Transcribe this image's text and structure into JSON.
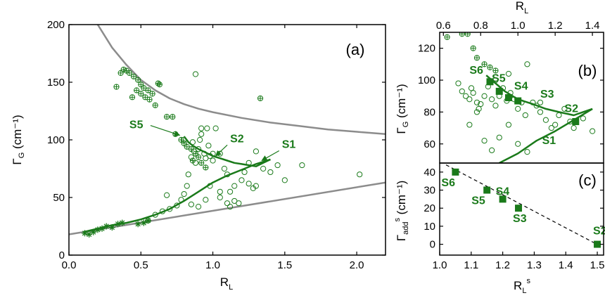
{
  "colors": {
    "green": "#1a7a1a",
    "gray": "#8c8c8c",
    "black": "#000000"
  },
  "chart_data": [
    {
      "type": "scatter",
      "panel_label": "(a)",
      "xlabel": "R",
      "xlabel_sub": "L",
      "ylabel": "Γ",
      "ylabel_sub": "G",
      "ylabel_unit": "(cm⁻¹)",
      "xlim": [
        0,
        2.2
      ],
      "ylim": [
        0,
        200
      ],
      "xticks": [
        "0.0",
        "0.5",
        "1.0",
        "1.5",
        "2.0"
      ],
      "xtick_values": [
        0,
        0.5,
        1.0,
        1.5,
        2.0
      ],
      "yticks": [
        "0",
        "50",
        "100",
        "150",
        "200"
      ],
      "ytick_values": [
        0,
        50,
        100,
        150,
        200
      ],
      "upper_bound": {
        "x": [
          0.2,
          0.3,
          0.4,
          0.5,
          0.6,
          0.7,
          0.8,
          0.9,
          1.0,
          1.2,
          1.4,
          1.6,
          1.8,
          2.0,
          2.2
        ],
        "y": [
          200,
          180,
          165,
          152,
          143,
          136,
          131,
          127,
          124,
          119,
          115,
          112,
          109,
          107,
          105
        ]
      },
      "lower_bound": {
        "x": [
          0.0,
          2.2
        ],
        "y": [
          18,
          63
        ]
      },
      "crosshair_points": {
        "x": [
          0.33,
          0.36,
          0.38,
          0.4,
          0.42,
          0.45,
          0.48,
          0.5,
          0.52,
          0.55,
          0.58,
          0.62,
          0.63,
          0.44,
          0.47,
          0.5,
          0.53,
          0.56,
          0.6,
          0.68,
          0.72,
          0.74,
          0.78,
          0.8,
          0.82,
          0.85,
          0.88,
          0.9,
          0.92,
          0.86,
          0.95,
          1.33
        ],
        "y": [
          146,
          158,
          161,
          160,
          158,
          155,
          152,
          148,
          145,
          143,
          140,
          149,
          148,
          137,
          143,
          140,
          137,
          135,
          130,
          120,
          120,
          105,
          100,
          97,
          94,
          92,
          88,
          85,
          80,
          82,
          76,
          136
        ]
      },
      "circle_points": {
        "x": [
          0.55,
          0.6,
          0.65,
          0.7,
          0.68,
          0.75,
          0.78,
          0.8,
          0.82,
          0.83,
          0.85,
          0.86,
          0.87,
          0.88,
          0.9,
          0.91,
          0.92,
          0.94,
          0.95,
          0.97,
          0.98,
          1.0,
          1.02,
          1.05,
          1.08,
          1.1,
          1.12,
          1.15,
          1.18,
          1.2,
          1.22,
          1.25,
          1.28,
          1.3,
          1.35,
          1.4,
          1.45,
          1.5,
          1.62,
          2.02,
          0.88,
          0.92,
          0.96,
          1.0,
          1.05,
          1.1,
          1.12,
          1.15,
          1.25,
          1.3,
          0.85,
          0.9,
          0.95,
          1.05,
          0.8,
          0.98
        ],
        "y": [
          30,
          35,
          38,
          40,
          52,
          43,
          48,
          53,
          60,
          70,
          85,
          98,
          90,
          80,
          92,
          100,
          105,
          88,
          84,
          95,
          86,
          82,
          110,
          88,
          75,
          70,
          55,
          60,
          45,
          65,
          72,
          80,
          58,
          90,
          75,
          72,
          78,
          65,
          78,
          70,
          157,
          110,
          110,
          88,
          50,
          45,
          42,
          47,
          62,
          60,
          44,
          42,
          48,
          55,
          100,
          60
        ]
      },
      "star_points": {
        "x": [
          0.11,
          0.14,
          0.17,
          0.2,
          0.23,
          0.26,
          0.3,
          0.34,
          0.37,
          0.48,
          0.52,
          0.55
        ],
        "y": [
          19,
          18,
          20,
          22,
          23,
          25,
          24,
          27,
          28,
          27,
          28,
          30
        ]
      },
      "lower_curve": {
        "x": [
          0.1,
          0.2,
          0.3,
          0.4,
          0.5,
          0.6,
          0.7,
          0.8,
          0.9,
          1.0,
          1.1,
          1.2,
          1.3,
          1.4
        ],
        "y": [
          20,
          23,
          26,
          28,
          31,
          35,
          40,
          47,
          55,
          63,
          69,
          74,
          79,
          83
        ]
      },
      "upper_curve": {
        "x": [
          0.8,
          0.83,
          0.86,
          0.9,
          0.95,
          1.0,
          1.05,
          1.1,
          1.15,
          1.2,
          1.25,
          1.3,
          1.35,
          1.4
        ],
        "y": [
          103,
          98,
          95,
          92,
          89,
          86,
          84,
          82,
          80,
          79,
          78,
          77,
          80,
          83
        ]
      },
      "series_labels": [
        {
          "text": "S5",
          "x": 0.42,
          "y": 110,
          "ax": 0.77,
          "ay": 104
        },
        {
          "text": "S2",
          "x": 1.12,
          "y": 98,
          "ax": 1.02,
          "ay": 86
        },
        {
          "text": "S1",
          "x": 1.48,
          "y": 93,
          "ax": 1.34,
          "ay": 82
        }
      ]
    },
    {
      "type": "scatter",
      "panel_label": "(b)",
      "xlabel": "R",
      "xlabel_sub": "L",
      "ylabel": "Γ",
      "ylabel_sub": "G",
      "ylabel_unit": "(cm⁻¹)",
      "xlim": [
        0.58,
        1.46
      ],
      "ylim": [
        48,
        130
      ],
      "xticks": [
        "0.6",
        "0.8",
        "1.0",
        "1.2",
        "1.4"
      ],
      "xtick_values": [
        0.6,
        0.8,
        1.0,
        1.2,
        1.4
      ],
      "yticks": [
        "60",
        "80",
        "100",
        "120"
      ],
      "ytick_values": [
        60,
        80,
        100,
        120
      ],
      "crosshair_points": {
        "x": [
          0.62,
          0.7,
          0.73,
          0.76,
          0.78,
          0.82,
          0.85,
          0.88
        ],
        "y": [
          127,
          129,
          129,
          120,
          114,
          110,
          108,
          106
        ]
      },
      "circle_points": {
        "x": [
          0.68,
          0.7,
          0.72,
          0.74,
          0.75,
          0.76,
          0.78,
          0.79,
          0.8,
          0.82,
          0.84,
          0.86,
          0.88,
          0.9,
          0.92,
          0.94,
          0.95,
          0.96,
          0.98,
          1.0,
          1.02,
          1.04,
          1.05,
          1.08,
          1.1,
          1.12,
          1.15,
          1.18,
          1.2,
          1.22,
          1.25,
          1.28,
          1.3,
          1.35,
          1.4,
          0.74,
          0.78,
          0.82,
          0.86,
          0.9,
          0.95,
          1.0,
          1.05,
          0.88,
          1.12
        ],
        "y": [
          98,
          93,
          90,
          88,
          95,
          92,
          86,
          82,
          85,
          90,
          96,
          88,
          84,
          90,
          95,
          87,
          104,
          92,
          88,
          82,
          86,
          78,
          110,
          86,
          84,
          80,
          75,
          70,
          72,
          78,
          82,
          74,
          70,
          76,
          68,
          72,
          80,
          62,
          56,
          64,
          72,
          60,
          55,
          100,
          86
        ]
      },
      "lower_curve": {
        "x": [
          0.9,
          1.0,
          1.1,
          1.2,
          1.3,
          1.4
        ],
        "y": [
          48,
          54,
          62,
          68,
          75,
          82
        ]
      },
      "upper_curve": {
        "x": [
          0.83,
          0.88,
          0.93,
          1.0,
          1.08,
          1.15,
          1.22,
          1.3,
          1.35,
          1.4
        ],
        "y": [
          103,
          98,
          93,
          88,
          85,
          82,
          80,
          78,
          80,
          82
        ]
      },
      "square_points": {
        "x": [
          0.85,
          0.9,
          0.95,
          1.0,
          1.31
        ],
        "y": [
          99,
          93,
          89,
          87,
          74
        ]
      },
      "series_labels": [
        {
          "text": "S6",
          "x": 0.74,
          "y": 104
        },
        {
          "text": "S5",
          "x": 0.86,
          "y": 99
        },
        {
          "text": "S4",
          "x": 0.98,
          "y": 94
        },
        {
          "text": "S3",
          "x": 1.12,
          "y": 89
        },
        {
          "text": "S2",
          "x": 1.25,
          "y": 80
        },
        {
          "text": "S1",
          "x": 1.13,
          "y": 60
        }
      ]
    },
    {
      "type": "scatter",
      "panel_label": "(c)",
      "xlabel": "R",
      "xlabel_sub": "L",
      "xlabel_sup": "s",
      "ylabel": "Γ",
      "ylabel_sub": "add",
      "ylabel_sup": "s",
      "ylabel_unit": "(cm⁻¹)",
      "xlim": [
        1.0,
        1.52
      ],
      "ylim": [
        -6,
        45
      ],
      "xticks": [
        "1.0",
        "1.1",
        "1.2",
        "1.3",
        "1.4",
        "1.5"
      ],
      "xtick_values": [
        1.0,
        1.1,
        1.2,
        1.3,
        1.4,
        1.5
      ],
      "yticks": [
        "0",
        "10",
        "20",
        "30",
        "40"
      ],
      "ytick_values": [
        0,
        10,
        20,
        30,
        40
      ],
      "points": {
        "x": [
          1.05,
          1.15,
          1.2,
          1.25,
          1.5
        ],
        "y": [
          40,
          30,
          25,
          20,
          0
        ],
        "labels": [
          "S6",
          "S5",
          "S4",
          "S3",
          "S2"
        ]
      },
      "fit_line": {
        "x": [
          1.02,
          1.51
        ],
        "y": [
          44,
          -1
        ]
      }
    }
  ]
}
